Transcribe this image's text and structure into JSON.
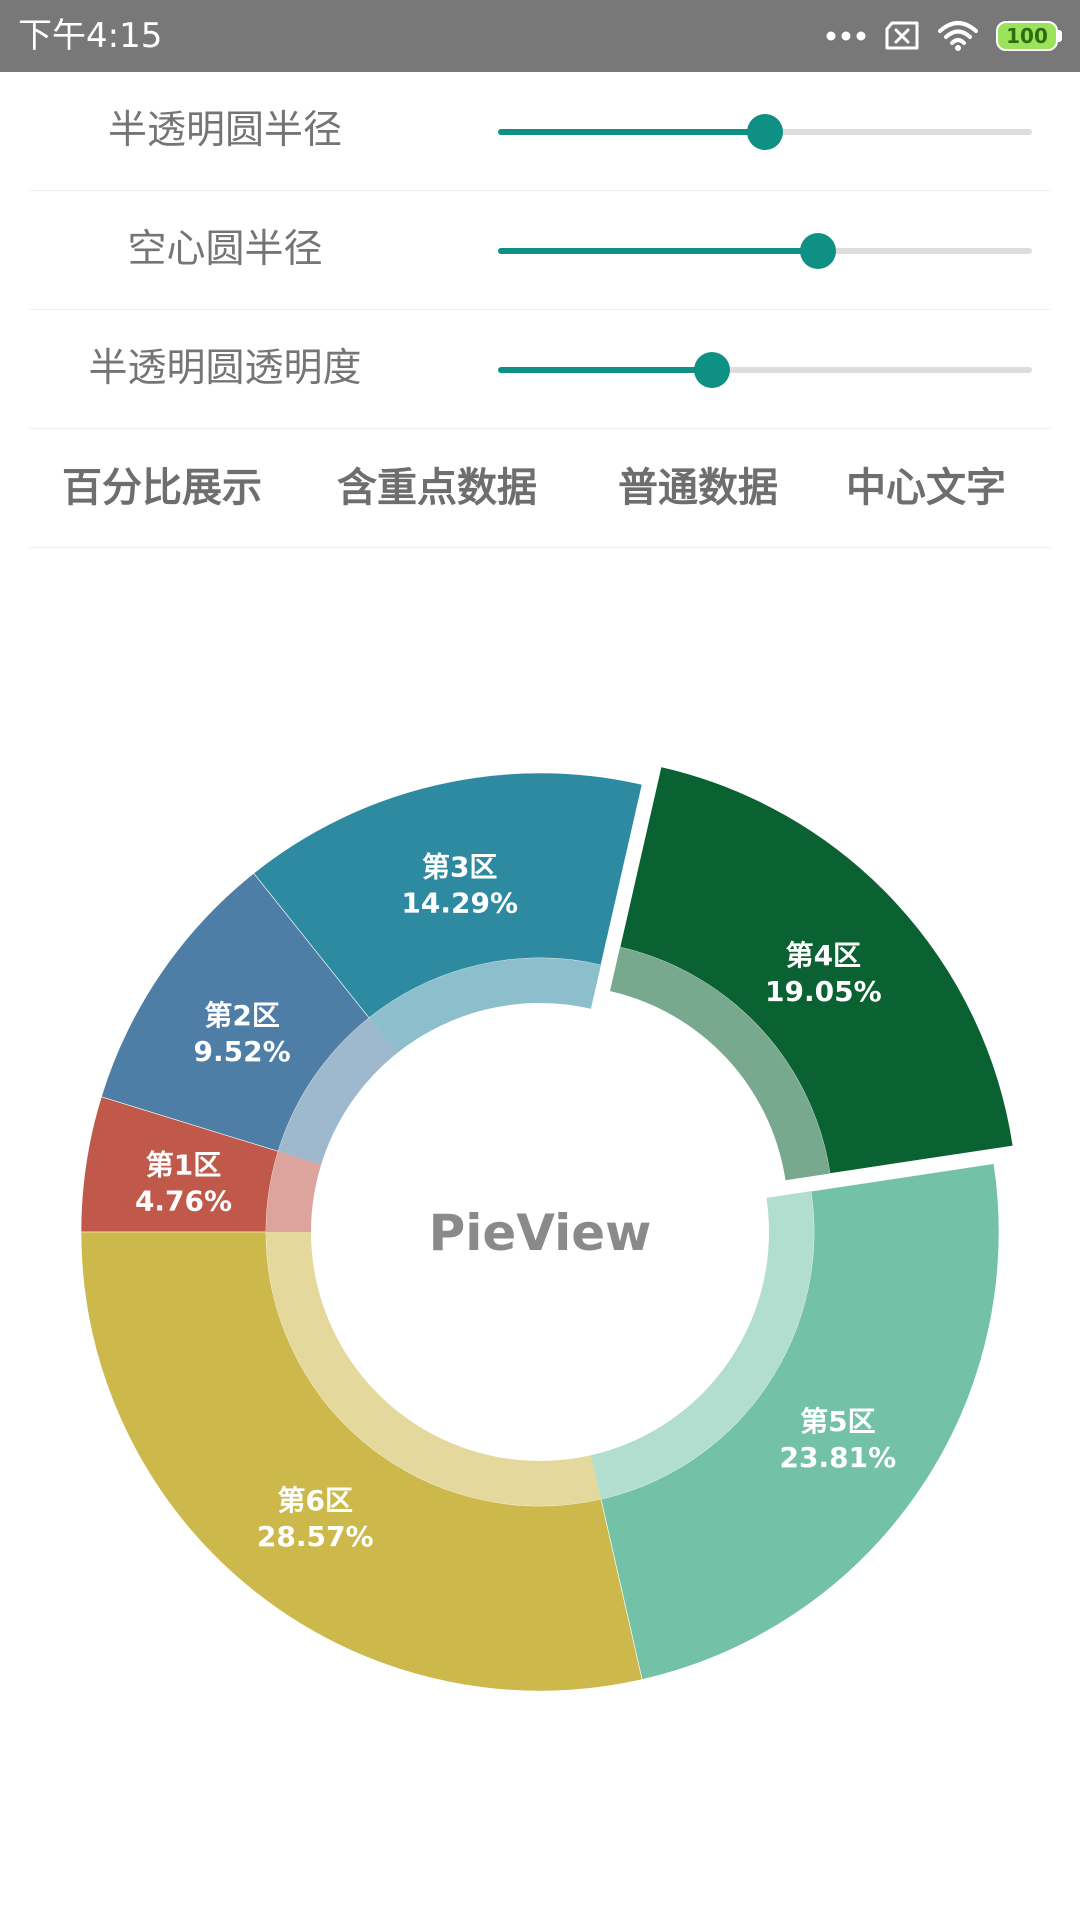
{
  "status_bar": {
    "time": "下午4:15",
    "battery": "100",
    "icons": [
      "more-dots-icon",
      "sim-x-icon",
      "wifi-icon",
      "battery-icon"
    ]
  },
  "controls": {
    "sliders": [
      {
        "label": "半透明圆半径",
        "value": 0.5
      },
      {
        "label": "空心圆半径",
        "value": 0.6
      },
      {
        "label": "半透明圆透明度",
        "value": 0.4
      }
    ],
    "modes": [
      "百分比展示",
      "含重点数据",
      "普通数据",
      "中心文字"
    ],
    "accent_color": "#0f9084"
  },
  "chart_data": {
    "type": "pie",
    "center_text": "PieView",
    "slices": [
      {
        "name": "第1区",
        "value": 4.76,
        "label": "4.76%",
        "color": "#c0594a",
        "exploded": false
      },
      {
        "name": "第2区",
        "value": 9.52,
        "label": "9.52%",
        "color": "#4e7ea5",
        "exploded": false
      },
      {
        "name": "第3区",
        "value": 14.29,
        "label": "14.29%",
        "color": "#2d8aa0",
        "exploded": false
      },
      {
        "name": "第4区",
        "value": 19.05,
        "label": "19.05%",
        "color": "#0a6131",
        "exploded": true
      },
      {
        "name": "第5区",
        "value": 23.81,
        "label": "23.81%",
        "color": "#73c2a8",
        "exploded": false
      },
      {
        "name": "第6区",
        "value": 28.57,
        "label": "28.57%",
        "color": "#cdb84b",
        "exploded": false
      }
    ]
  }
}
